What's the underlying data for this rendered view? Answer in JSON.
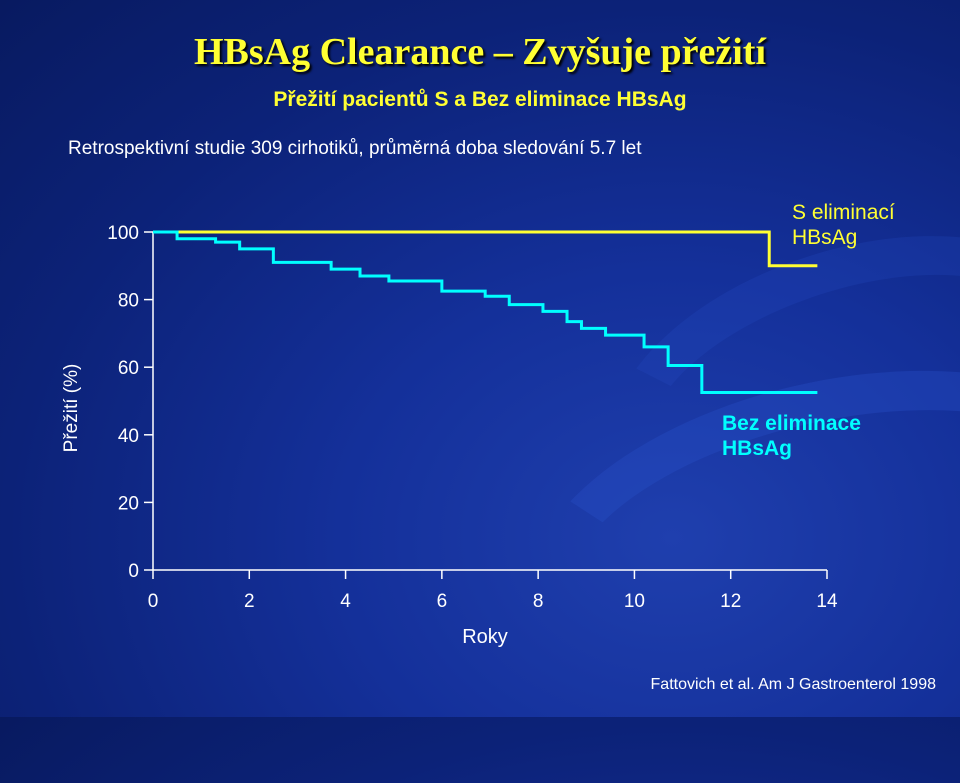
{
  "title": "HBsAg Clearance – Zvyšuje přežití",
  "subtitle": "Přežití pacientů  S a Bez eliminace HBsAg",
  "study_text": "Retrospektivní studie 309 cirhotiků, průměrná doba sledování  5.7 let",
  "source": "Fattovich et al. Am J Gastroenterol 1998",
  "colors": {
    "title": "#ffff33",
    "with_clearance": "#ffff33",
    "without_clearance": "#00ffff",
    "axis": "#ffffff"
  },
  "chart_data": {
    "type": "line",
    "step": true,
    "xlabel": "Roky",
    "ylabel": "Přežití (%)",
    "xlim": [
      0,
      14
    ],
    "ylim": [
      0,
      100
    ],
    "x_ticks": [
      "0",
      "2",
      "4",
      "6",
      "8",
      "10",
      "12",
      "14"
    ],
    "y_ticks": [
      "0",
      "20",
      "40",
      "60",
      "80",
      "100"
    ],
    "grid": false,
    "series": [
      {
        "name": "S eliminací HBsAg",
        "label_lines": [
          "S eliminací",
          "HBsAg"
        ],
        "color": "#ffff33",
        "x": [
          0,
          12.8,
          12.8,
          13.8
        ],
        "y": [
          100,
          99.7,
          90,
          90
        ]
      },
      {
        "name": "Bez eliminace HBsAg",
        "label_lines": [
          "Bez eliminace",
          "HBsAg"
        ],
        "color": "#00ffff",
        "x": [
          0,
          0.5,
          1.3,
          1.8,
          2.5,
          3.7,
          4.3,
          4.9,
          6.0,
          6.9,
          7.4,
          8.1,
          8.6,
          8.9,
          9.4,
          10.2,
          10.7,
          11.4,
          13.8
        ],
        "y": [
          100,
          98,
          97,
          95,
          91,
          89,
          87,
          85.5,
          82.5,
          81,
          78.5,
          76.5,
          73.5,
          71.5,
          69.5,
          66,
          60.5,
          52.5,
          52.5
        ]
      }
    ]
  }
}
